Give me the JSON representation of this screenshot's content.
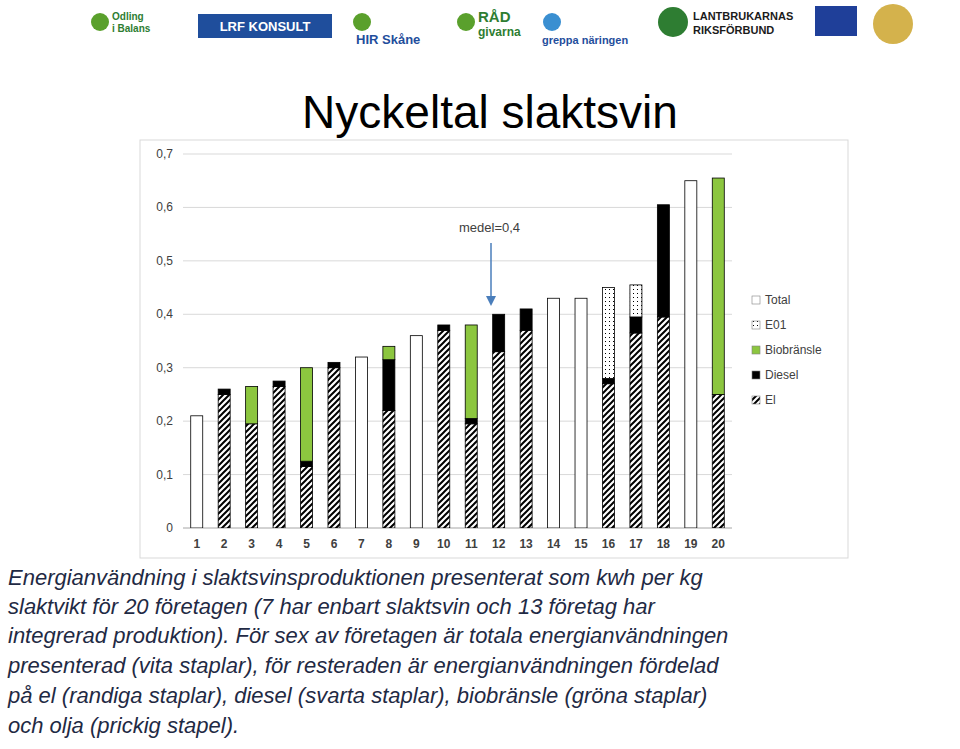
{
  "logos": [
    {
      "lines": [
        "Odling",
        "i Balans"
      ]
    },
    {
      "lines": [
        "LRF KONSULT"
      ]
    },
    {
      "lines": [
        "HIR Skåne"
      ]
    },
    {
      "lines": [
        "RÅD",
        "givarna"
      ]
    },
    {
      "lines": [
        "greppa näringen"
      ]
    },
    {
      "lines": [
        "LANTBRUKARNAS",
        "RIKSFÖRBUND"
      ]
    }
  ],
  "chart_data": {
    "type": "bar",
    "title": "Nyckeltal slaktsvin",
    "stacked": true,
    "grid": true,
    "legend": "right",
    "annotations": [
      "medel=0,4"
    ],
    "categories": [
      "1",
      "2",
      "3",
      "4",
      "5",
      "6",
      "7",
      "8",
      "9",
      "10",
      "11",
      "12",
      "13",
      "14",
      "15",
      "16",
      "17",
      "18",
      "19",
      "20"
    ],
    "ylim": [
      0,
      0.7
    ],
    "yticks": [
      0,
      {
        "value": 0.1,
        "label": "0,1"
      },
      {
        "value": 0.2,
        "label": "0,2"
      },
      {
        "value": 0.3,
        "label": "0,3"
      },
      {
        "value": 0.4,
        "label": "0,4"
      },
      {
        "value": 0.5,
        "label": "0,5"
      },
      {
        "value": 0.6,
        "label": "0,6"
      },
      {
        "value": 0.7,
        "label": "0,7"
      }
    ],
    "series": [
      {
        "name": "El",
        "color": "#000000",
        "line_style": "hatched",
        "values": [
          null,
          0.25,
          0.195,
          0.265,
          0.115,
          0.3,
          null,
          0.22,
          null,
          0.37,
          0.195,
          0.33,
          0.37,
          null,
          null,
          0.27,
          0.365,
          0.395,
          null,
          0.25
        ]
      },
      {
        "name": "Diesel",
        "color": "#000000",
        "line_style": "solid",
        "values": [
          null,
          0.01,
          null,
          0.01,
          0.01,
          0.01,
          null,
          0.095,
          null,
          0.01,
          0.01,
          0.07,
          0.04,
          null,
          null,
          0.01,
          0.03,
          0.21,
          null,
          null
        ]
      },
      {
        "name": "Biobränsle",
        "color": "#8cc63f",
        "line_style": "solid",
        "values": [
          null,
          null,
          0.07,
          null,
          0.175,
          null,
          null,
          0.025,
          null,
          null,
          0.175,
          null,
          null,
          null,
          null,
          null,
          null,
          null,
          null,
          0.405
        ]
      },
      {
        "name": "E01",
        "color": "#000000",
        "line_style": "dotted",
        "values": [
          null,
          null,
          null,
          null,
          null,
          null,
          null,
          null,
          null,
          null,
          null,
          null,
          null,
          null,
          null,
          0.17,
          0.06,
          null,
          null,
          null
        ]
      },
      {
        "name": "Total",
        "color": "#ffffff",
        "line_style": "solid",
        "values": [
          0.21,
          null,
          null,
          null,
          null,
          null,
          0.32,
          null,
          0.36,
          null,
          null,
          null,
          null,
          0.43,
          0.43,
          null,
          null,
          null,
          0.65,
          null
        ]
      }
    ]
  },
  "caption": [
    "Energianvändning i slaktsvinsproduktionen presenterat som kwh per kg",
    "slaktvikt för 20 företagen (7 har enbart slaktsvin och 13 företag har",
    "integrerad produktion). För sex av företagen är totala energianvändningen",
    "presenterad (vita staplar), för resteraden är energianvändningen fördelad",
    "på el (randiga staplar), diesel (svarta staplar), biobränsle (gröna staplar)",
    "och olja (prickig stapel)."
  ]
}
